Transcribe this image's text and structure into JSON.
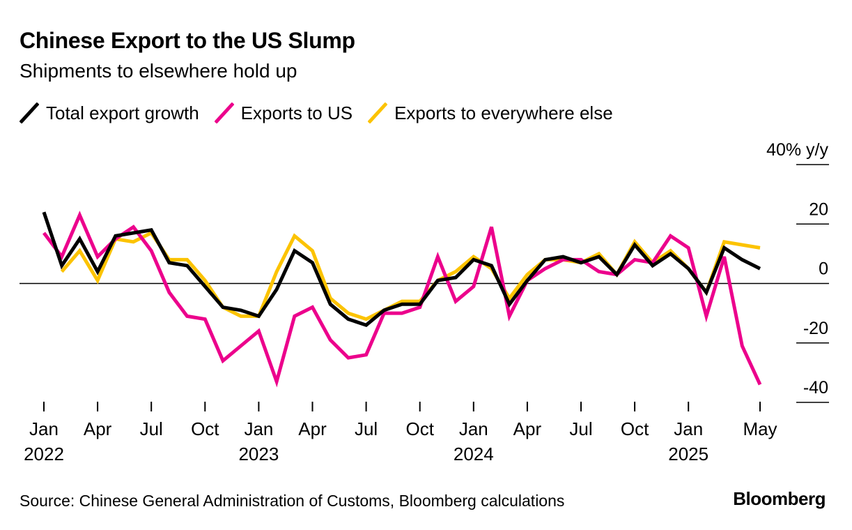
{
  "header": {
    "title": "Chinese Export to the US Slump",
    "subtitle": "Shipments to elsewhere hold up"
  },
  "footer": {
    "source": "Source: Chinese General Administration of Customs, Bloomberg calculations",
    "brand": "Bloomberg"
  },
  "colors": {
    "total": "#000000",
    "us": "#ec008c",
    "else": "#fcc300",
    "zero_line": "#000000",
    "axis": "#000000"
  },
  "chart_data": {
    "type": "line",
    "title": "Chinese Export to the US Slump",
    "subtitle": "Shipments to elsewhere hold up",
    "ylabel": "40% y/y",
    "ylim": [
      -40,
      40
    ],
    "y_ticks": [
      {
        "value": 40,
        "label": "40% y/y"
      },
      {
        "value": 20,
        "label": "20"
      },
      {
        "value": 0,
        "label": "0"
      },
      {
        "value": -20,
        "label": "-20"
      },
      {
        "value": -40,
        "label": "-40"
      }
    ],
    "x": [
      "2022-01",
      "2022-02",
      "2022-03",
      "2022-04",
      "2022-05",
      "2022-06",
      "2022-07",
      "2022-08",
      "2022-09",
      "2022-10",
      "2022-11",
      "2022-12",
      "2023-01",
      "2023-02",
      "2023-03",
      "2023-04",
      "2023-05",
      "2023-06",
      "2023-07",
      "2023-08",
      "2023-09",
      "2023-10",
      "2023-11",
      "2023-12",
      "2024-01",
      "2024-02",
      "2024-03",
      "2024-04",
      "2024-05",
      "2024-06",
      "2024-07",
      "2024-08",
      "2024-09",
      "2024-10",
      "2024-11",
      "2024-12",
      "2025-01",
      "2025-02",
      "2025-03",
      "2025-04",
      "2025-05"
    ],
    "x_ticks": [
      {
        "month": "2022-01",
        "label": "Jan",
        "year": "2022"
      },
      {
        "month": "2022-04",
        "label": "Apr",
        "year": ""
      },
      {
        "month": "2022-07",
        "label": "Jul",
        "year": ""
      },
      {
        "month": "2022-10",
        "label": "Oct",
        "year": ""
      },
      {
        "month": "2023-01",
        "label": "Jan",
        "year": "2023"
      },
      {
        "month": "2023-04",
        "label": "Apr",
        "year": ""
      },
      {
        "month": "2023-07",
        "label": "Jul",
        "year": ""
      },
      {
        "month": "2023-10",
        "label": "Oct",
        "year": ""
      },
      {
        "month": "2024-01",
        "label": "Jan",
        "year": "2024"
      },
      {
        "month": "2024-04",
        "label": "Apr",
        "year": ""
      },
      {
        "month": "2024-07",
        "label": "Jul",
        "year": ""
      },
      {
        "month": "2024-10",
        "label": "Oct",
        "year": ""
      },
      {
        "month": "2025-01",
        "label": "Jan",
        "year": "2025"
      },
      {
        "month": "2025-05",
        "label": "May",
        "year": ""
      }
    ],
    "series": [
      {
        "name": "Exports to everywhere else",
        "key": "else",
        "color": "#fcc300",
        "values": [
          null,
          4,
          11,
          1,
          15,
          14,
          17,
          8,
          8,
          1,
          -8,
          -11,
          -11,
          4,
          16,
          11,
          -5,
          -10,
          -12,
          -9,
          -6,
          -6,
          1,
          4,
          9,
          5,
          -5,
          3,
          8,
          8,
          7,
          10,
          3,
          14,
          7,
          11,
          5,
          -3,
          14,
          13,
          12
        ]
      },
      {
        "name": "Exports to US",
        "key": "us",
        "color": "#ec008c",
        "values": [
          17,
          9,
          23,
          9,
          15,
          19,
          11,
          -3,
          -11,
          -12,
          -26,
          -21,
          -16,
          -33,
          -11,
          -8,
          -19,
          -25,
          -24,
          -10,
          -10,
          -8,
          9,
          -6,
          -1,
          19,
          -11,
          1,
          5,
          8,
          8,
          4,
          3,
          8,
          7,
          16,
          12,
          -11,
          9,
          -21,
          -34
        ]
      },
      {
        "name": "Total export growth",
        "key": "total",
        "color": "#000000",
        "values": [
          24,
          6,
          15,
          4,
          16,
          17,
          18,
          7,
          6,
          -1,
          -8,
          -9,
          -11,
          -2,
          11,
          7,
          -7,
          -12,
          -14,
          -9,
          -7,
          -7,
          1,
          2,
          8,
          6,
          -7,
          1,
          8,
          9,
          7,
          9,
          3,
          13,
          6,
          10,
          5,
          -3,
          12,
          8,
          5
        ]
      }
    ],
    "legend": [
      {
        "label": "Total export growth",
        "key": "total"
      },
      {
        "label": "Exports to US",
        "key": "us"
      },
      {
        "label": "Exports to everywhere else",
        "key": "else"
      }
    ],
    "grid": false,
    "legend_position": "top-left"
  }
}
